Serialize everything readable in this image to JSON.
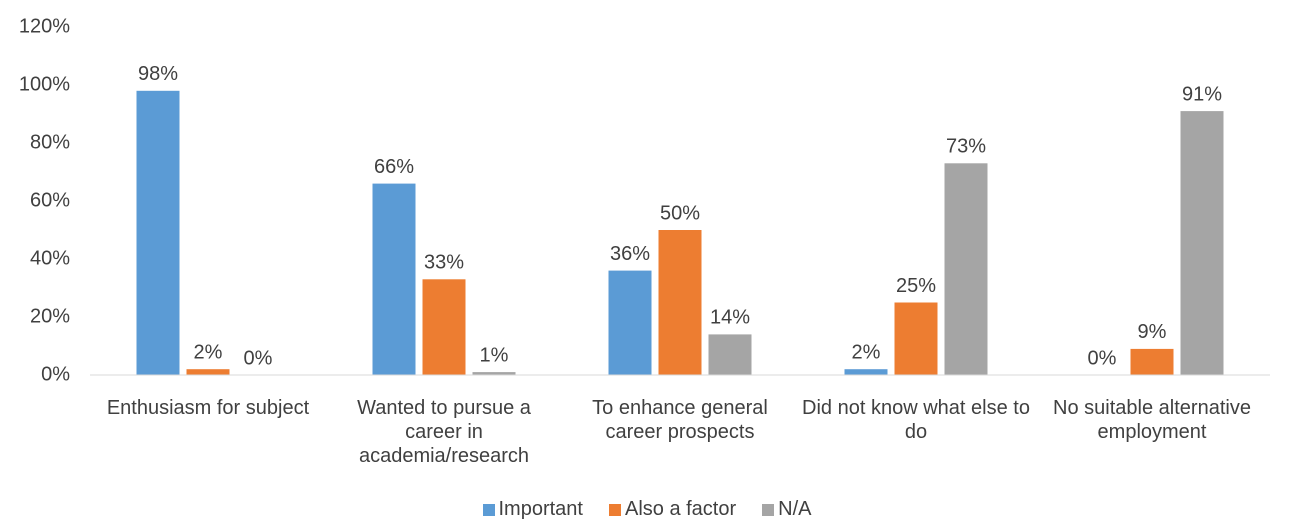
{
  "chart_data": {
    "type": "bar",
    "categories": [
      "Enthusiasm for subject",
      "Wanted to pursue a career in academia/research",
      "To enhance general career prospects",
      "Did not know what else to do",
      "No suitable alternative employment"
    ],
    "series": [
      {
        "name": "Important",
        "color": "#5b9bd5",
        "values": [
          98,
          66,
          36,
          2,
          0
        ],
        "value_labels": [
          "98%",
          "66%",
          "36%",
          "2%",
          "0%"
        ]
      },
      {
        "name": "Also a factor",
        "color": "#ed7d31",
        "values": [
          2,
          33,
          50,
          25,
          9
        ],
        "value_labels": [
          "2%",
          "33%",
          "50%",
          "25%",
          "9%"
        ]
      },
      {
        "name": "N/A",
        "color": "#a5a5a5",
        "values": [
          0,
          1,
          14,
          73,
          91
        ],
        "value_labels": [
          "0%",
          "1%",
          "14%",
          "73%",
          "91%"
        ]
      }
    ],
    "ylim": [
      0,
      120
    ],
    "yticks": [
      {
        "value": 0,
        "label": "0%"
      },
      {
        "value": 20,
        "label": "20%"
      },
      {
        "value": 40,
        "label": "40%"
      },
      {
        "value": 60,
        "label": "60%"
      },
      {
        "value": 80,
        "label": "80%"
      },
      {
        "value": 100,
        "label": "100%"
      },
      {
        "value": 120,
        "label": "120%"
      }
    ],
    "grid": false,
    "legend": "bottom"
  }
}
